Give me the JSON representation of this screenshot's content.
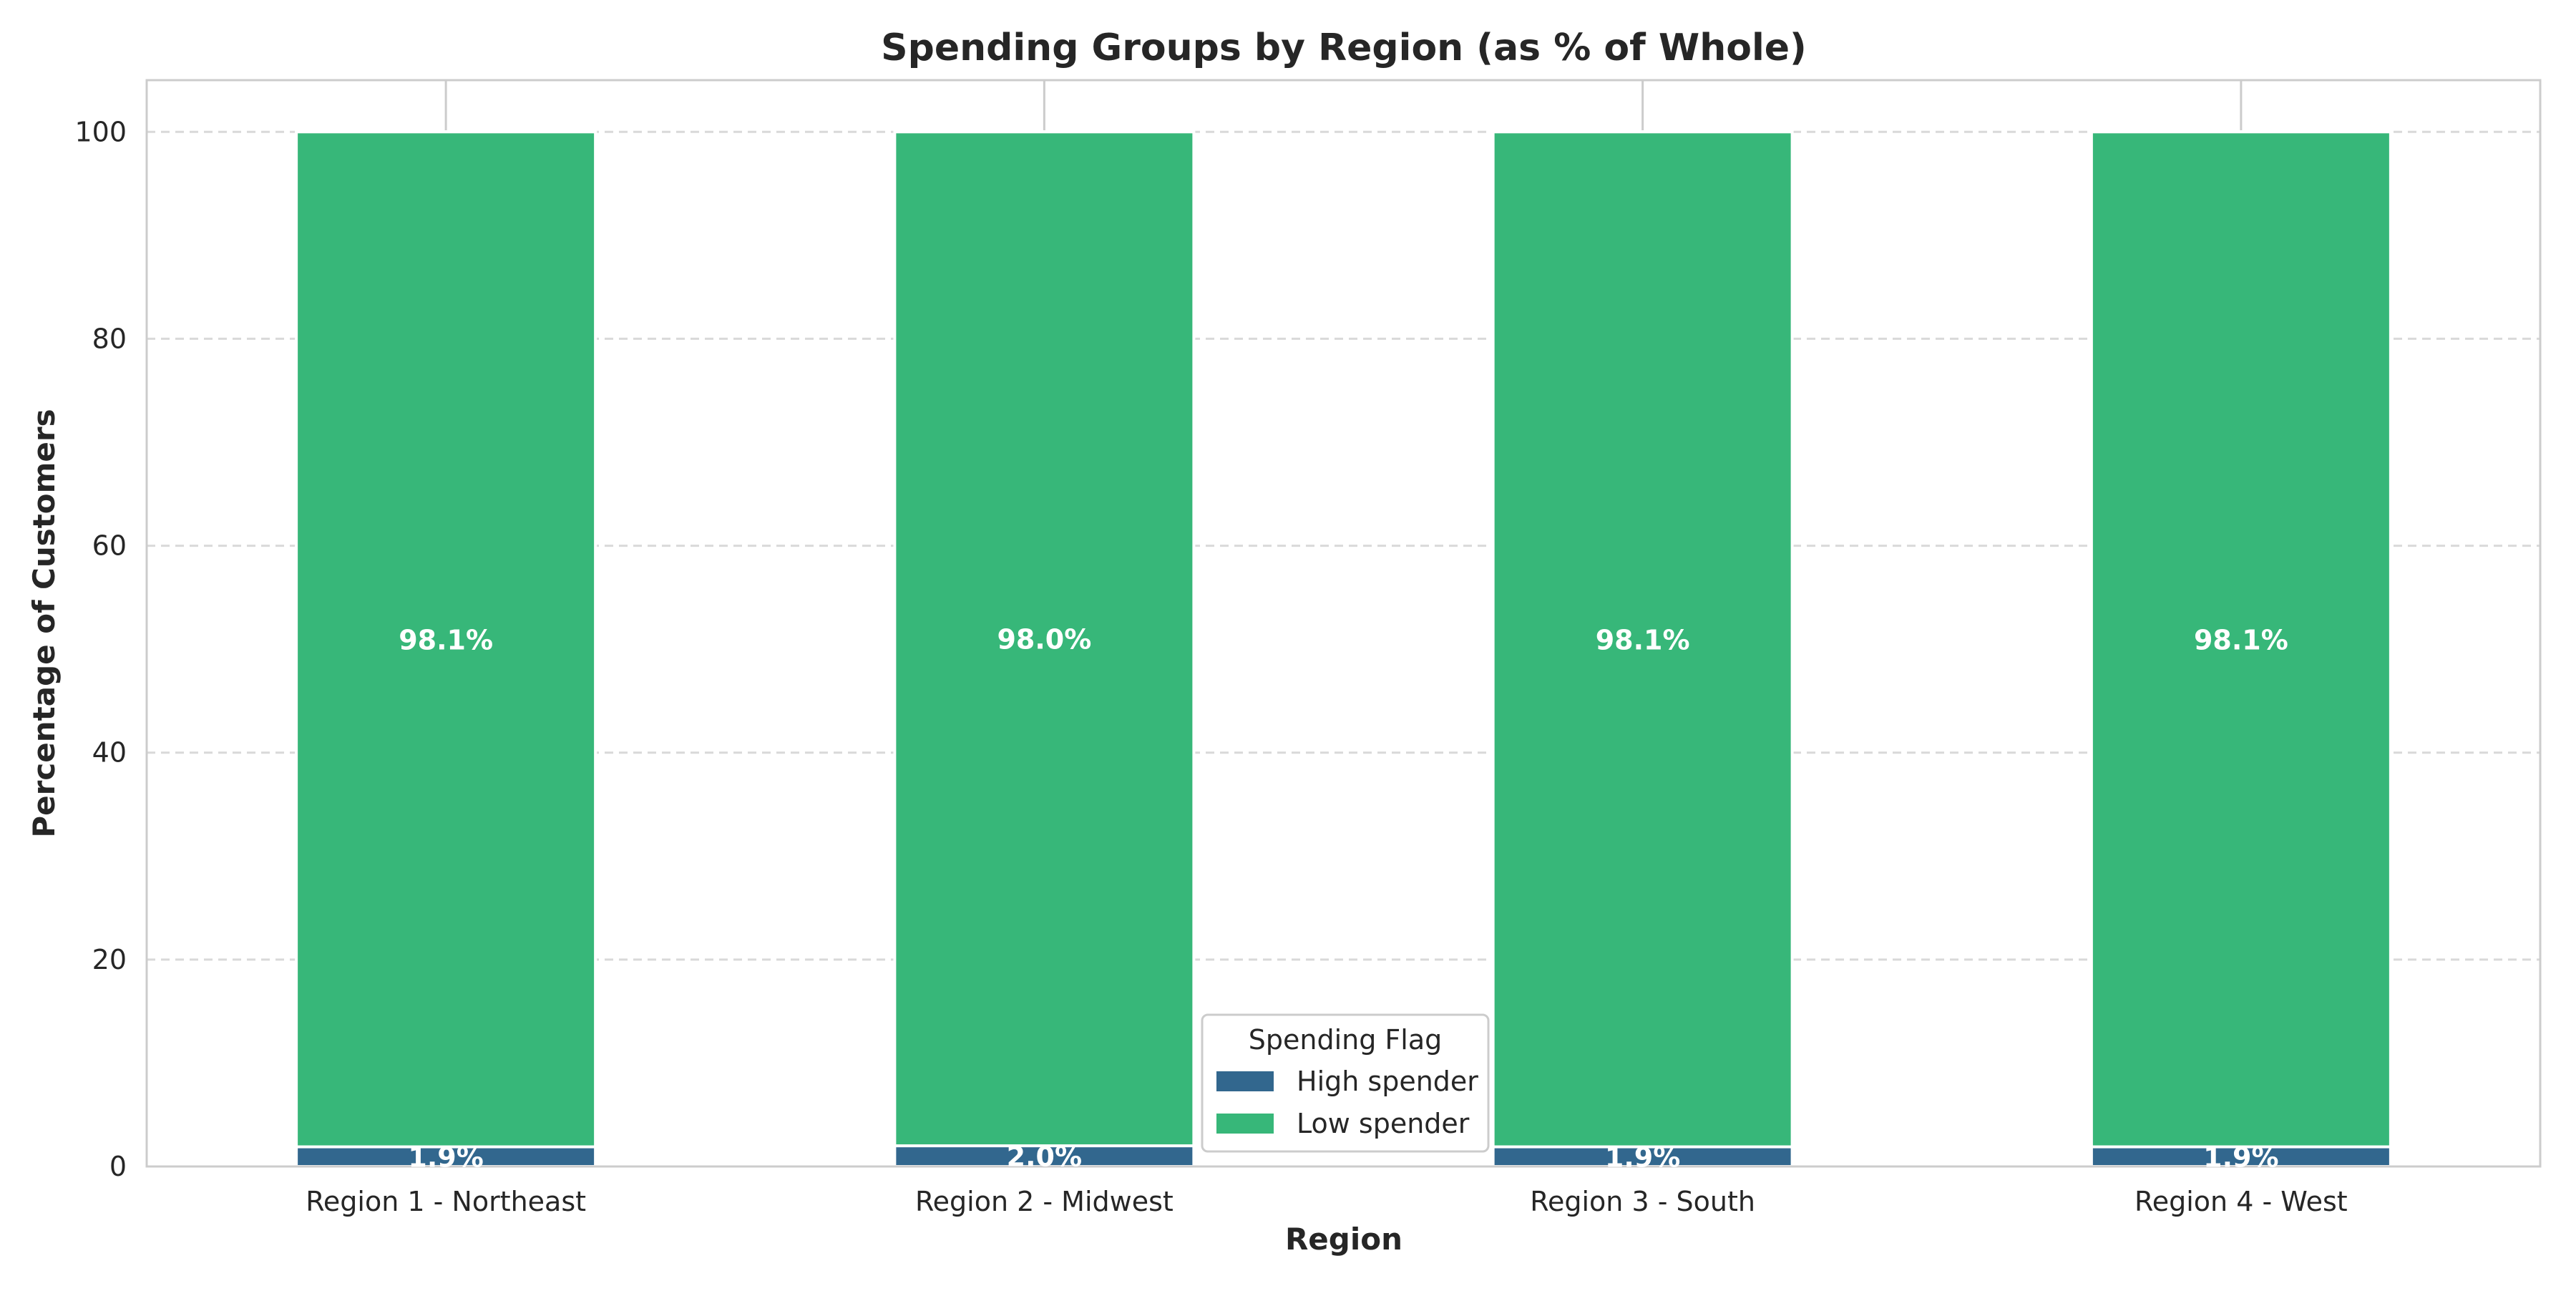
{
  "chart_data": {
    "type": "bar",
    "stacked": true,
    "title": "Spending Groups by Region (as % of Whole)",
    "xlabel": "Region",
    "ylabel": "Percentage of Customers",
    "categories": [
      "Region 1 - Northeast",
      "Region 2 - Midwest",
      "Region 3 - South",
      "Region 4 - West"
    ],
    "series": [
      {
        "name": "High spender",
        "values": [
          1.9,
          2.0,
          1.9,
          1.9
        ],
        "labels": [
          "1.9%",
          "2.0%",
          "1.9%",
          "1.9%"
        ],
        "color": "#32678e"
      },
      {
        "name": "Low spender",
        "values": [
          98.1,
          98.0,
          98.1,
          98.1
        ],
        "labels": [
          "98.1%",
          "98.0%",
          "98.1%",
          "98.1%"
        ],
        "color": "#37b779"
      }
    ],
    "ylim": [
      0,
      105
    ],
    "yticks": [
      0,
      20,
      40,
      60,
      80,
      100
    ],
    "grid": true,
    "grid_axis": "y",
    "legend": {
      "title": "Spending Flag",
      "placement": "bottom-center"
    }
  }
}
